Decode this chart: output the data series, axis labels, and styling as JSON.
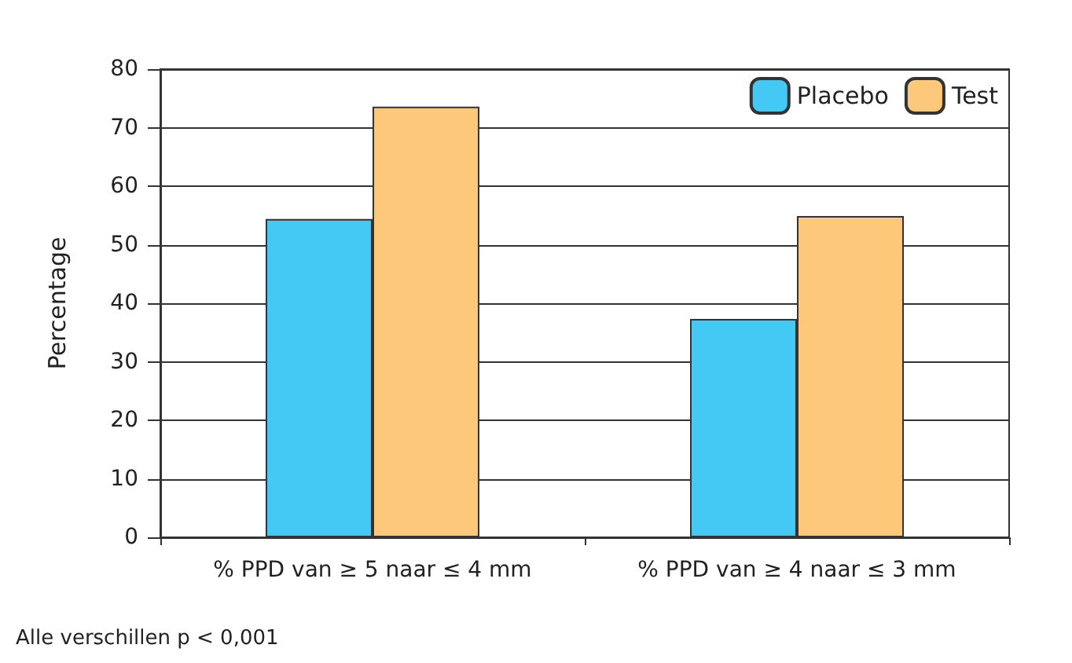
{
  "chart_data": {
    "type": "bar",
    "ylabel": "Percentage",
    "categories": [
      "% PPD van ≥ 5 naar ≤ 4 mm",
      "% PPD van ≥ 4 naar ≤ 3 mm"
    ],
    "series": [
      {
        "name": "Placebo",
        "color": "#44c8f4",
        "values": [
          54.4,
          37.3
        ]
      },
      {
        "name": "Test",
        "color": "#fec87a",
        "values": [
          73.6,
          54.9
        ]
      }
    ],
    "ylim": [
      0,
      80
    ],
    "yticks": [
      0,
      10,
      20,
      30,
      40,
      50,
      60,
      70,
      80
    ],
    "grid": "y",
    "legend": "top right",
    "annotations": [
      "Alle verschillen p < 0,001"
    ]
  }
}
